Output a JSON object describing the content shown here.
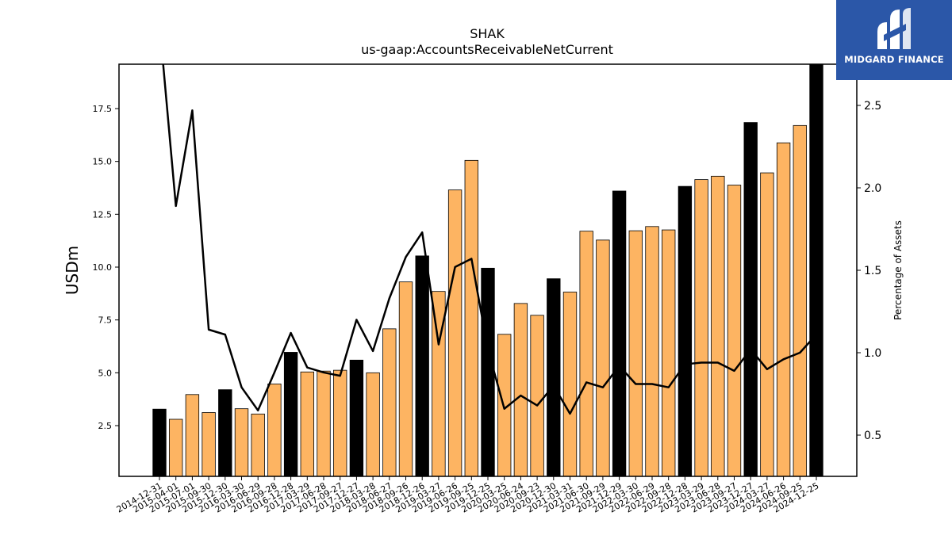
{
  "logo": {
    "text": "MIDGARD FINANCE"
  },
  "chart_data": {
    "type": "bar",
    "title": "SHAK",
    "subtitle": "us-gaap:AccountsReceivableNetCurrent",
    "ylabel": "USDm",
    "y2label": "Percentage of Assets",
    "ylim": [
      0.1,
      19.6
    ],
    "y2lim": [
      0.25,
      2.75
    ],
    "yticks": [
      "2.5",
      "5.0",
      "7.5",
      "10.0",
      "12.5",
      "15.0",
      "17.5"
    ],
    "y2ticks": [
      "0.5",
      "1.0",
      "1.5",
      "2.0",
      "2.5"
    ],
    "grid": false,
    "colors": {
      "annual": "#000000",
      "quarterly": "#fdb462",
      "line": "#000000"
    },
    "categories": [
      "2014-12-31",
      "2015-04-01",
      "2015-07-01",
      "2015-09-30",
      "2015-12-30",
      "2016-03-30",
      "2016-06-29",
      "2016-09-28",
      "2016-12-28",
      "2017-03-29",
      "2017-06-28",
      "2017-09-27",
      "2017-12-27",
      "2018-03-28",
      "2018-06-27",
      "2018-09-26",
      "2018-12-26",
      "2019-03-27",
      "2019-06-26",
      "2019-09-25",
      "2019-12-25",
      "2020-03-25",
      "2020-06-24",
      "2020-09-23",
      "2020-12-30",
      "2021-03-31",
      "2021-06-30",
      "2021-09-29",
      "2021-12-29",
      "2022-03-30",
      "2022-06-29",
      "2022-09-28",
      "2022-12-28",
      "2023-03-29",
      "2023-06-28",
      "2023-09-27",
      "2023-12-27",
      "2024-03-27",
      "2024-06-26",
      "2024-09-25",
      "2024-12-25"
    ],
    "series": [
      {
        "values": [
          3.28,
          2.8,
          3.97,
          3.12,
          4.2,
          3.3,
          3.05,
          4.47,
          5.97,
          5.04,
          5.08,
          5.12,
          5.6,
          5.0,
          7.08,
          9.3,
          10.53,
          8.85,
          13.65,
          15.05,
          9.95,
          6.82,
          8.28,
          7.72,
          9.45,
          8.82,
          11.7,
          11.28,
          13.6,
          11.72,
          11.92,
          11.76,
          13.82,
          14.14,
          14.3,
          13.88,
          16.84,
          14.46,
          15.88,
          16.7,
          19.6
        ],
        "kinds": [
          "annual",
          "quarterly",
          "quarterly",
          "quarterly",
          "annual",
          "quarterly",
          "quarterly",
          "quarterly",
          "annual",
          "quarterly",
          "quarterly",
          "quarterly",
          "annual",
          "quarterly",
          "quarterly",
          "quarterly",
          "annual",
          "quarterly",
          "quarterly",
          "quarterly",
          "annual",
          "quarterly",
          "quarterly",
          "quarterly",
          "annual",
          "quarterly",
          "quarterly",
          "quarterly",
          "annual",
          "quarterly",
          "quarterly",
          "quarterly",
          "annual",
          "quarterly",
          "quarterly",
          "quarterly",
          "annual",
          "quarterly",
          "quarterly",
          "quarterly",
          "annual"
        ]
      },
      {
        "axis": "right",
        "values": [
          3.0,
          1.89,
          2.47,
          1.14,
          1.11,
          0.79,
          0.65,
          0.88,
          1.12,
          0.91,
          0.88,
          0.86,
          1.2,
          1.01,
          1.33,
          1.58,
          1.73,
          1.05,
          1.52,
          1.57,
          1.02,
          0.66,
          0.74,
          0.68,
          0.8,
          0.63,
          0.82,
          0.79,
          0.92,
          0.81,
          0.81,
          0.79,
          0.93,
          0.94,
          0.94,
          0.89,
          1.02,
          0.9,
          0.96,
          1.0,
          1.11
        ]
      }
    ]
  }
}
